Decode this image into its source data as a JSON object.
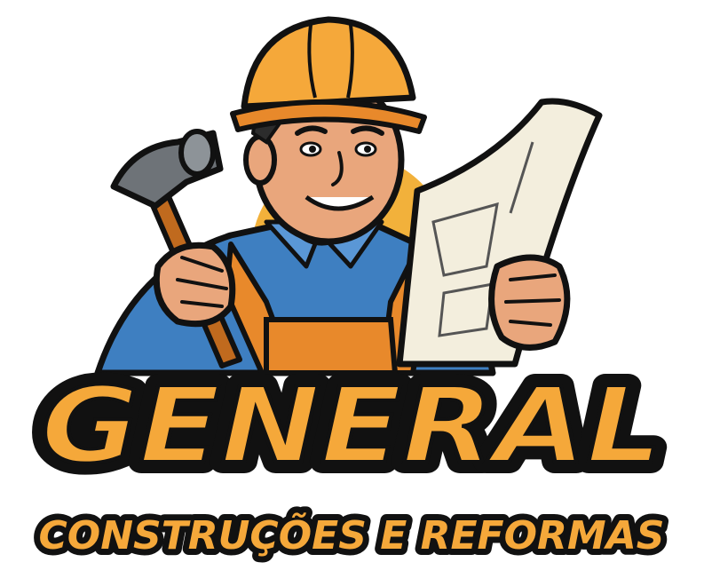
{
  "brand": {
    "name": "GENERAL",
    "tagline": "CONSTRUÇÕES E REFORMAS"
  },
  "mascot": {
    "description_icon": "construction-worker-mascot",
    "helmet_icon": "hard-hat-icon",
    "tool_icon": "hammer-icon",
    "document_icon": "blueprint-icon"
  },
  "colors": {
    "accent_orange": "#F5A83A",
    "deep_orange": "#E8892B",
    "shirt_blue": "#3E7FC1",
    "outline": "#111111",
    "skin": "#E9A67C",
    "paper": "#F3EEDD"
  }
}
